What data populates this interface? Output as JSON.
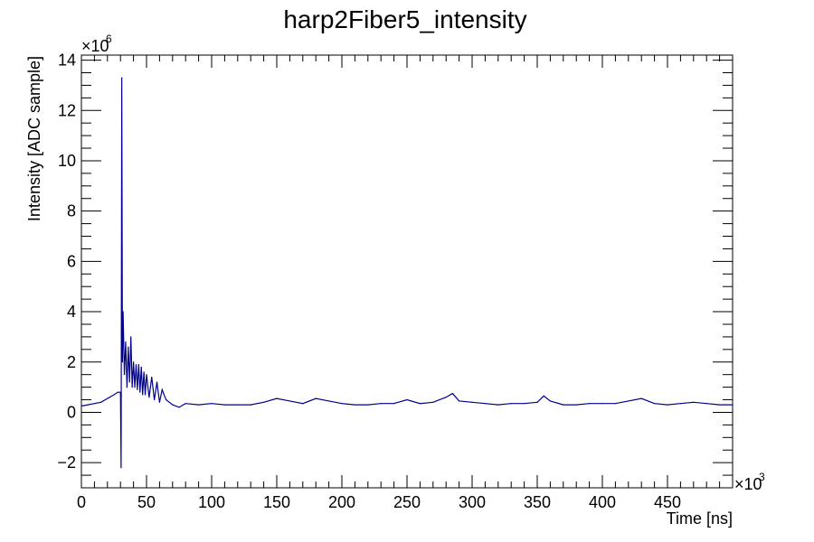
{
  "chart_data": {
    "type": "line",
    "title": "harp2Fiber5_intensity",
    "xlabel": "Time [ns]",
    "ylabel": "Intensity [ADC sample]",
    "x_multiplier_label": "×10",
    "x_multiplier_exp": "3",
    "y_multiplier_label": "×10",
    "y_multiplier_exp": "6",
    "xlim": [
      0,
      500
    ],
    "ylim": [
      -3,
      14.2
    ],
    "x_ticks": [
      0,
      50,
      100,
      150,
      200,
      250,
      300,
      350,
      400,
      450
    ],
    "x_tick_labels": [
      "0",
      "50",
      "100",
      "150",
      "200",
      "250",
      "300",
      "350",
      "400",
      "450"
    ],
    "y_ticks": [
      -2,
      0,
      2,
      4,
      6,
      8,
      10,
      12,
      14
    ],
    "y_tick_labels": [
      "−2",
      "0",
      "2",
      "4",
      "6",
      "8",
      "10",
      "12",
      "14"
    ],
    "grid": false,
    "line_color": "#00008b",
    "series": [
      {
        "points": [
          [
            0,
            0.25
          ],
          [
            5,
            0.3
          ],
          [
            10,
            0.35
          ],
          [
            15,
            0.4
          ],
          [
            20,
            0.55
          ],
          [
            25,
            0.7
          ],
          [
            28,
            0.8
          ],
          [
            30,
            0.8
          ],
          [
            30.5,
            -2.2
          ],
          [
            31,
            13.3
          ],
          [
            31.5,
            2.0
          ],
          [
            32,
            4.0
          ],
          [
            33,
            1.5
          ],
          [
            34,
            2.8
          ],
          [
            35,
            1.0
          ],
          [
            36,
            2.6
          ],
          [
            37,
            1.2
          ],
          [
            38,
            3.0
          ],
          [
            39,
            1.0
          ],
          [
            40,
            2.0
          ],
          [
            41,
            1.0
          ],
          [
            42,
            1.9
          ],
          [
            43,
            0.9
          ],
          [
            44,
            1.9
          ],
          [
            45,
            0.8
          ],
          [
            46,
            1.8
          ],
          [
            47,
            0.7
          ],
          [
            48,
            1.6
          ],
          [
            49,
            0.7
          ],
          [
            50,
            1.5
          ],
          [
            52,
            0.6
          ],
          [
            54,
            1.4
          ],
          [
            56,
            0.5
          ],
          [
            58,
            1.2
          ],
          [
            60,
            0.4
          ],
          [
            62,
            0.9
          ],
          [
            65,
            0.5
          ],
          [
            70,
            0.3
          ],
          [
            75,
            0.2
          ],
          [
            80,
            0.35
          ],
          [
            90,
            0.3
          ],
          [
            100,
            0.35
          ],
          [
            110,
            0.3
          ],
          [
            120,
            0.3
          ],
          [
            130,
            0.3
          ],
          [
            140,
            0.4
          ],
          [
            150,
            0.55
          ],
          [
            160,
            0.45
          ],
          [
            170,
            0.35
          ],
          [
            180,
            0.55
          ],
          [
            190,
            0.45
          ],
          [
            200,
            0.35
          ],
          [
            210,
            0.3
          ],
          [
            220,
            0.3
          ],
          [
            230,
            0.35
          ],
          [
            240,
            0.35
          ],
          [
            250,
            0.5
          ],
          [
            260,
            0.35
          ],
          [
            270,
            0.4
          ],
          [
            280,
            0.6
          ],
          [
            285,
            0.75
          ],
          [
            290,
            0.45
          ],
          [
            300,
            0.4
          ],
          [
            310,
            0.35
          ],
          [
            320,
            0.3
          ],
          [
            330,
            0.35
          ],
          [
            340,
            0.35
          ],
          [
            350,
            0.4
          ],
          [
            355,
            0.65
          ],
          [
            360,
            0.45
          ],
          [
            370,
            0.3
          ],
          [
            380,
            0.3
          ],
          [
            390,
            0.35
          ],
          [
            400,
            0.35
          ],
          [
            410,
            0.35
          ],
          [
            420,
            0.45
          ],
          [
            430,
            0.55
          ],
          [
            440,
            0.35
          ],
          [
            450,
            0.3
          ],
          [
            460,
            0.35
          ],
          [
            470,
            0.4
          ],
          [
            480,
            0.35
          ],
          [
            490,
            0.3
          ],
          [
            500,
            0.3
          ]
        ]
      }
    ]
  }
}
